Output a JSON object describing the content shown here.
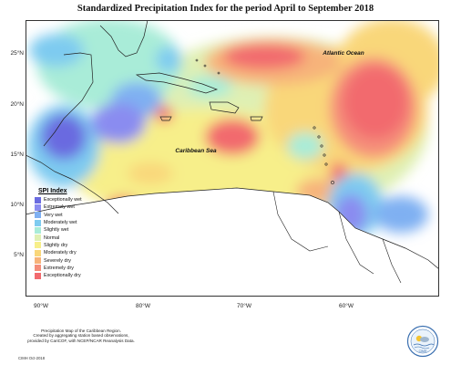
{
  "title": "Standardized Precipitation Index for the period April to September 2018",
  "axis": {
    "lat_labels": [
      "25°N",
      "20°N",
      "15°N",
      "10°N",
      "5°N"
    ],
    "lon_labels": [
      "90°W",
      "80°W",
      "70°W",
      "60°W"
    ]
  },
  "labels": {
    "atlantic": "Atlantic Ocean",
    "caribbean": "Caribbean Sea"
  },
  "legend": {
    "title": "SPI Index",
    "items": [
      {
        "label": "Exceptionally wet",
        "color": "#6a6be0"
      },
      {
        "label": "Extremely wet",
        "color": "#8a8cf0"
      },
      {
        "label": "Very wet",
        "color": "#7fb0f2"
      },
      {
        "label": "Moderately wet",
        "color": "#7ecbf0"
      },
      {
        "label": "Slightly wet",
        "color": "#a9ecd8"
      },
      {
        "label": "Normal",
        "color": "#dff0b4"
      },
      {
        "label": "Slightly dry",
        "color": "#f7ef8a"
      },
      {
        "label": "Moderately dry",
        "color": "#f9d77a"
      },
      {
        "label": "Severely dry",
        "color": "#f7b37a"
      },
      {
        "label": "Extremely dry",
        "color": "#f58e7a"
      },
      {
        "label": "Exceptionally dry",
        "color": "#f26a6e"
      }
    ]
  },
  "footer": {
    "lines": [
      "Precipitation Map of the Caribbean Region.",
      "Created by aggregating station based observations,",
      "provided by CariCOF, with NCEP/NCAR Reanalysis Data."
    ],
    "date": "CIMH Oct-2018"
  },
  "logo": {
    "text": "CIMH"
  }
}
